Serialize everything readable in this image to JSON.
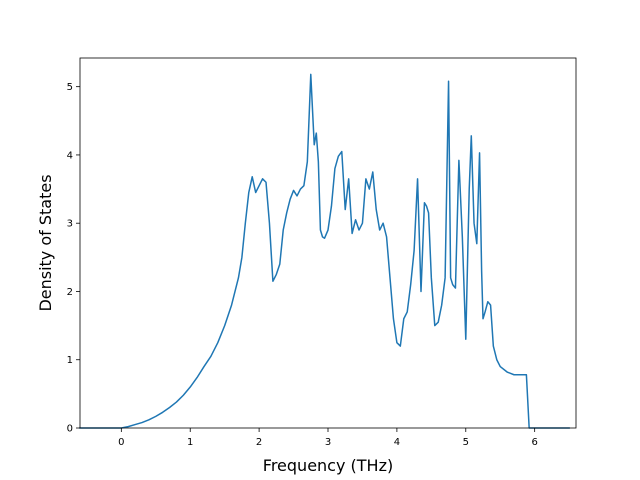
{
  "chart_data": {
    "type": "line",
    "title": "",
    "xlabel": "Frequency (THz)",
    "ylabel": "Density of States",
    "xlim": [
      -0.6,
      6.6
    ],
    "ylim": [
      0,
      5.42
    ],
    "xticks": [
      0,
      1,
      2,
      3,
      4,
      5,
      6
    ],
    "xtick_labels": [
      "0",
      "1",
      "2",
      "3",
      "4",
      "5",
      "6"
    ],
    "yticks": [
      0,
      1,
      2,
      3,
      4,
      5
    ],
    "ytick_labels": [
      "0",
      "1",
      "2",
      "3",
      "4",
      "5"
    ],
    "grid": false,
    "legend": "none",
    "series": [
      {
        "color": "#1f77b4",
        "x": [
          -0.6,
          0.0,
          0.1,
          0.2,
          0.3,
          0.4,
          0.5,
          0.6,
          0.7,
          0.8,
          0.9,
          1.0,
          1.1,
          1.2,
          1.3,
          1.4,
          1.5,
          1.6,
          1.7,
          1.75,
          1.8,
          1.85,
          1.9,
          1.95,
          2.0,
          2.05,
          2.1,
          2.15,
          2.2,
          2.25,
          2.3,
          2.35,
          2.4,
          2.45,
          2.5,
          2.55,
          2.6,
          2.65,
          2.7,
          2.75,
          2.8,
          2.83,
          2.86,
          2.89,
          2.92,
          2.95,
          3.0,
          3.05,
          3.1,
          3.15,
          3.2,
          3.25,
          3.3,
          3.35,
          3.4,
          3.45,
          3.5,
          3.55,
          3.6,
          3.65,
          3.7,
          3.75,
          3.8,
          3.85,
          3.9,
          3.95,
          4.0,
          4.05,
          4.1,
          4.15,
          4.2,
          4.25,
          4.3,
          4.35,
          4.4,
          4.43,
          4.46,
          4.5,
          4.55,
          4.6,
          4.65,
          4.7,
          4.75,
          4.78,
          4.81,
          4.85,
          4.9,
          4.95,
          5.0,
          5.05,
          5.08,
          5.12,
          5.16,
          5.2,
          5.23,
          5.25,
          5.28,
          5.32,
          5.36,
          5.4,
          5.45,
          5.5,
          5.6,
          5.7,
          5.8,
          5.88,
          5.92,
          6.0,
          6.5
        ],
        "y": [
          0.0,
          0.0,
          0.02,
          0.05,
          0.08,
          0.12,
          0.17,
          0.23,
          0.3,
          0.38,
          0.48,
          0.6,
          0.74,
          0.9,
          1.05,
          1.25,
          1.5,
          1.8,
          2.2,
          2.5,
          3.0,
          3.45,
          3.68,
          3.45,
          3.55,
          3.65,
          3.6,
          3.0,
          2.15,
          2.25,
          2.4,
          2.9,
          3.15,
          3.35,
          3.48,
          3.4,
          3.5,
          3.55,
          3.9,
          5.18,
          4.15,
          4.32,
          3.9,
          2.9,
          2.8,
          2.78,
          2.9,
          3.25,
          3.8,
          3.98,
          4.05,
          3.2,
          3.65,
          2.85,
          3.05,
          2.9,
          3.0,
          3.65,
          3.5,
          3.75,
          3.2,
          2.9,
          3.0,
          2.8,
          2.2,
          1.6,
          1.25,
          1.2,
          1.6,
          1.7,
          2.1,
          2.6,
          3.65,
          2.0,
          3.3,
          3.25,
          3.15,
          2.2,
          1.5,
          1.55,
          1.8,
          2.2,
          5.08,
          2.2,
          2.1,
          2.05,
          3.92,
          2.8,
          1.3,
          3.5,
          4.28,
          3.0,
          2.7,
          4.03,
          2.3,
          1.6,
          1.7,
          1.85,
          1.8,
          1.2,
          1.0,
          0.9,
          0.82,
          0.78,
          0.78,
          0.78,
          0.0,
          0.0,
          0.0
        ]
      }
    ]
  }
}
